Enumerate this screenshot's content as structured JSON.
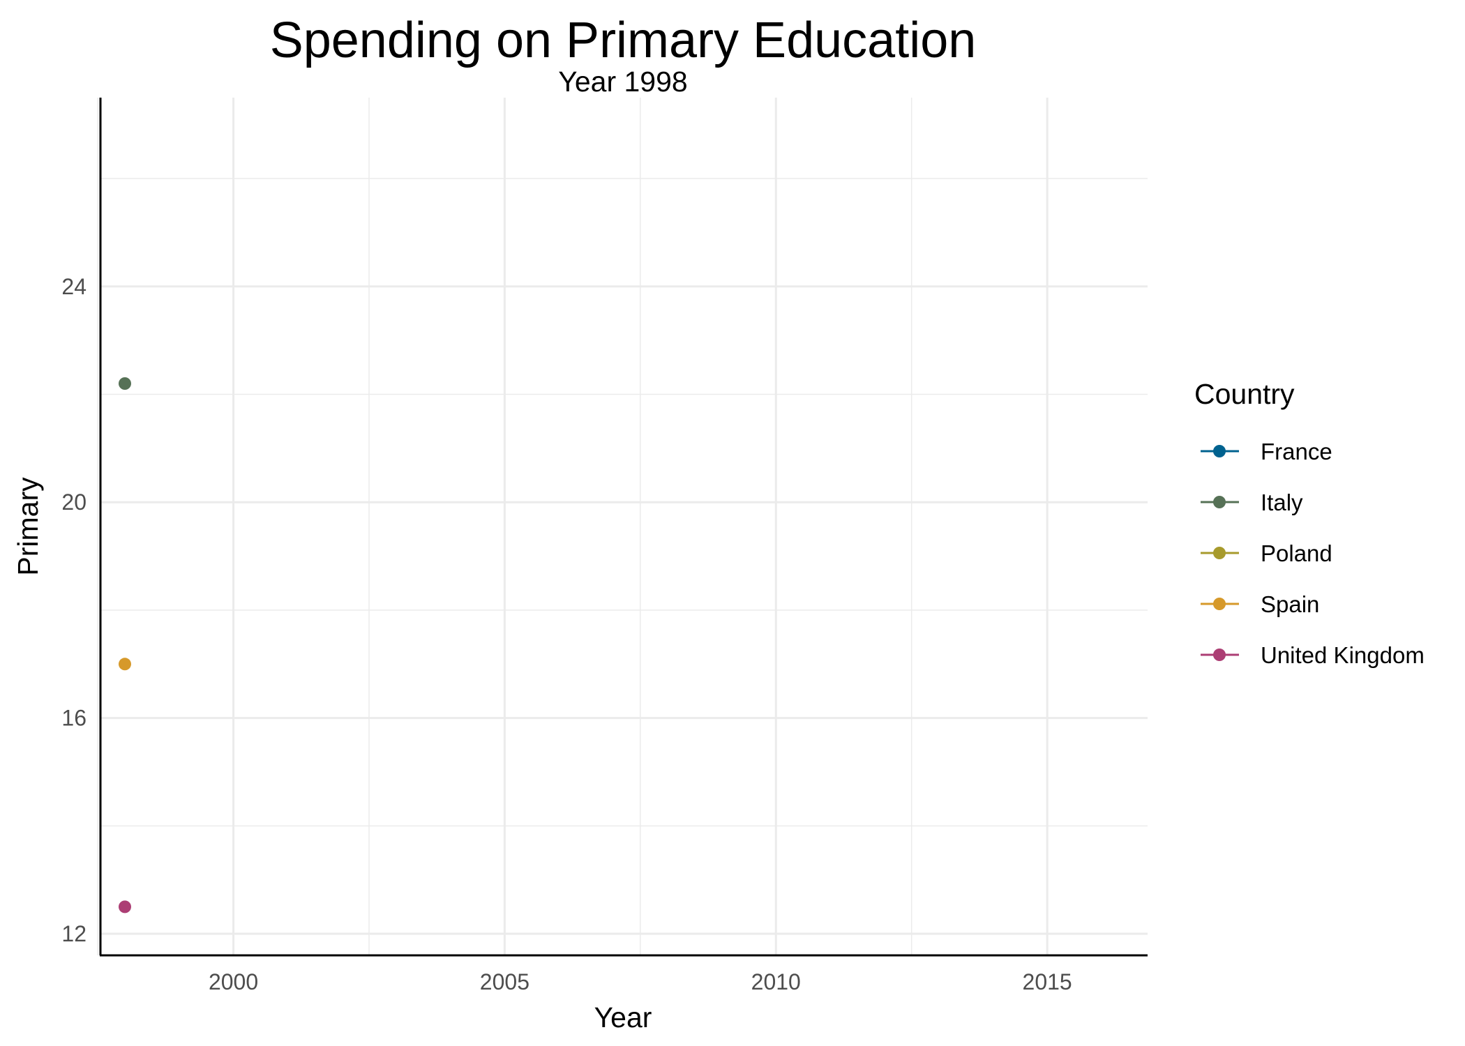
{
  "chart_data": {
    "type": "line",
    "title": "Spending on Primary Education",
    "subtitle": "Year 1998",
    "xlabel": "Year",
    "ylabel": "Primary",
    "xlim": [
      1997.55,
      2016.85
    ],
    "ylim": [
      11.6,
      27.5
    ],
    "x_ticks": [
      2000,
      2005,
      2010,
      2015
    ],
    "x_minor_ticks": [
      1997.5,
      2002.5,
      2007.5,
      2012.5
    ],
    "y_ticks": [
      12,
      16,
      20,
      24
    ],
    "y_minor_ticks": [
      14,
      18,
      22,
      26
    ],
    "grid": true,
    "legend": {
      "title": "Country",
      "position": "right"
    },
    "series": [
      {
        "name": "France",
        "color": "#00628f",
        "x": [],
        "y": []
      },
      {
        "name": "Italy",
        "color": "#567156",
        "x": [
          1998
        ],
        "y": [
          22.2
        ]
      },
      {
        "name": "Poland",
        "color": "#a79a2c",
        "x": [],
        "y": []
      },
      {
        "name": "Spain",
        "color": "#d6992a",
        "x": [
          1998
        ],
        "y": [
          17.0
        ]
      },
      {
        "name": "United Kingdom",
        "color": "#ac3e74",
        "x": [
          1998
        ],
        "y": [
          12.5
        ]
      }
    ]
  }
}
